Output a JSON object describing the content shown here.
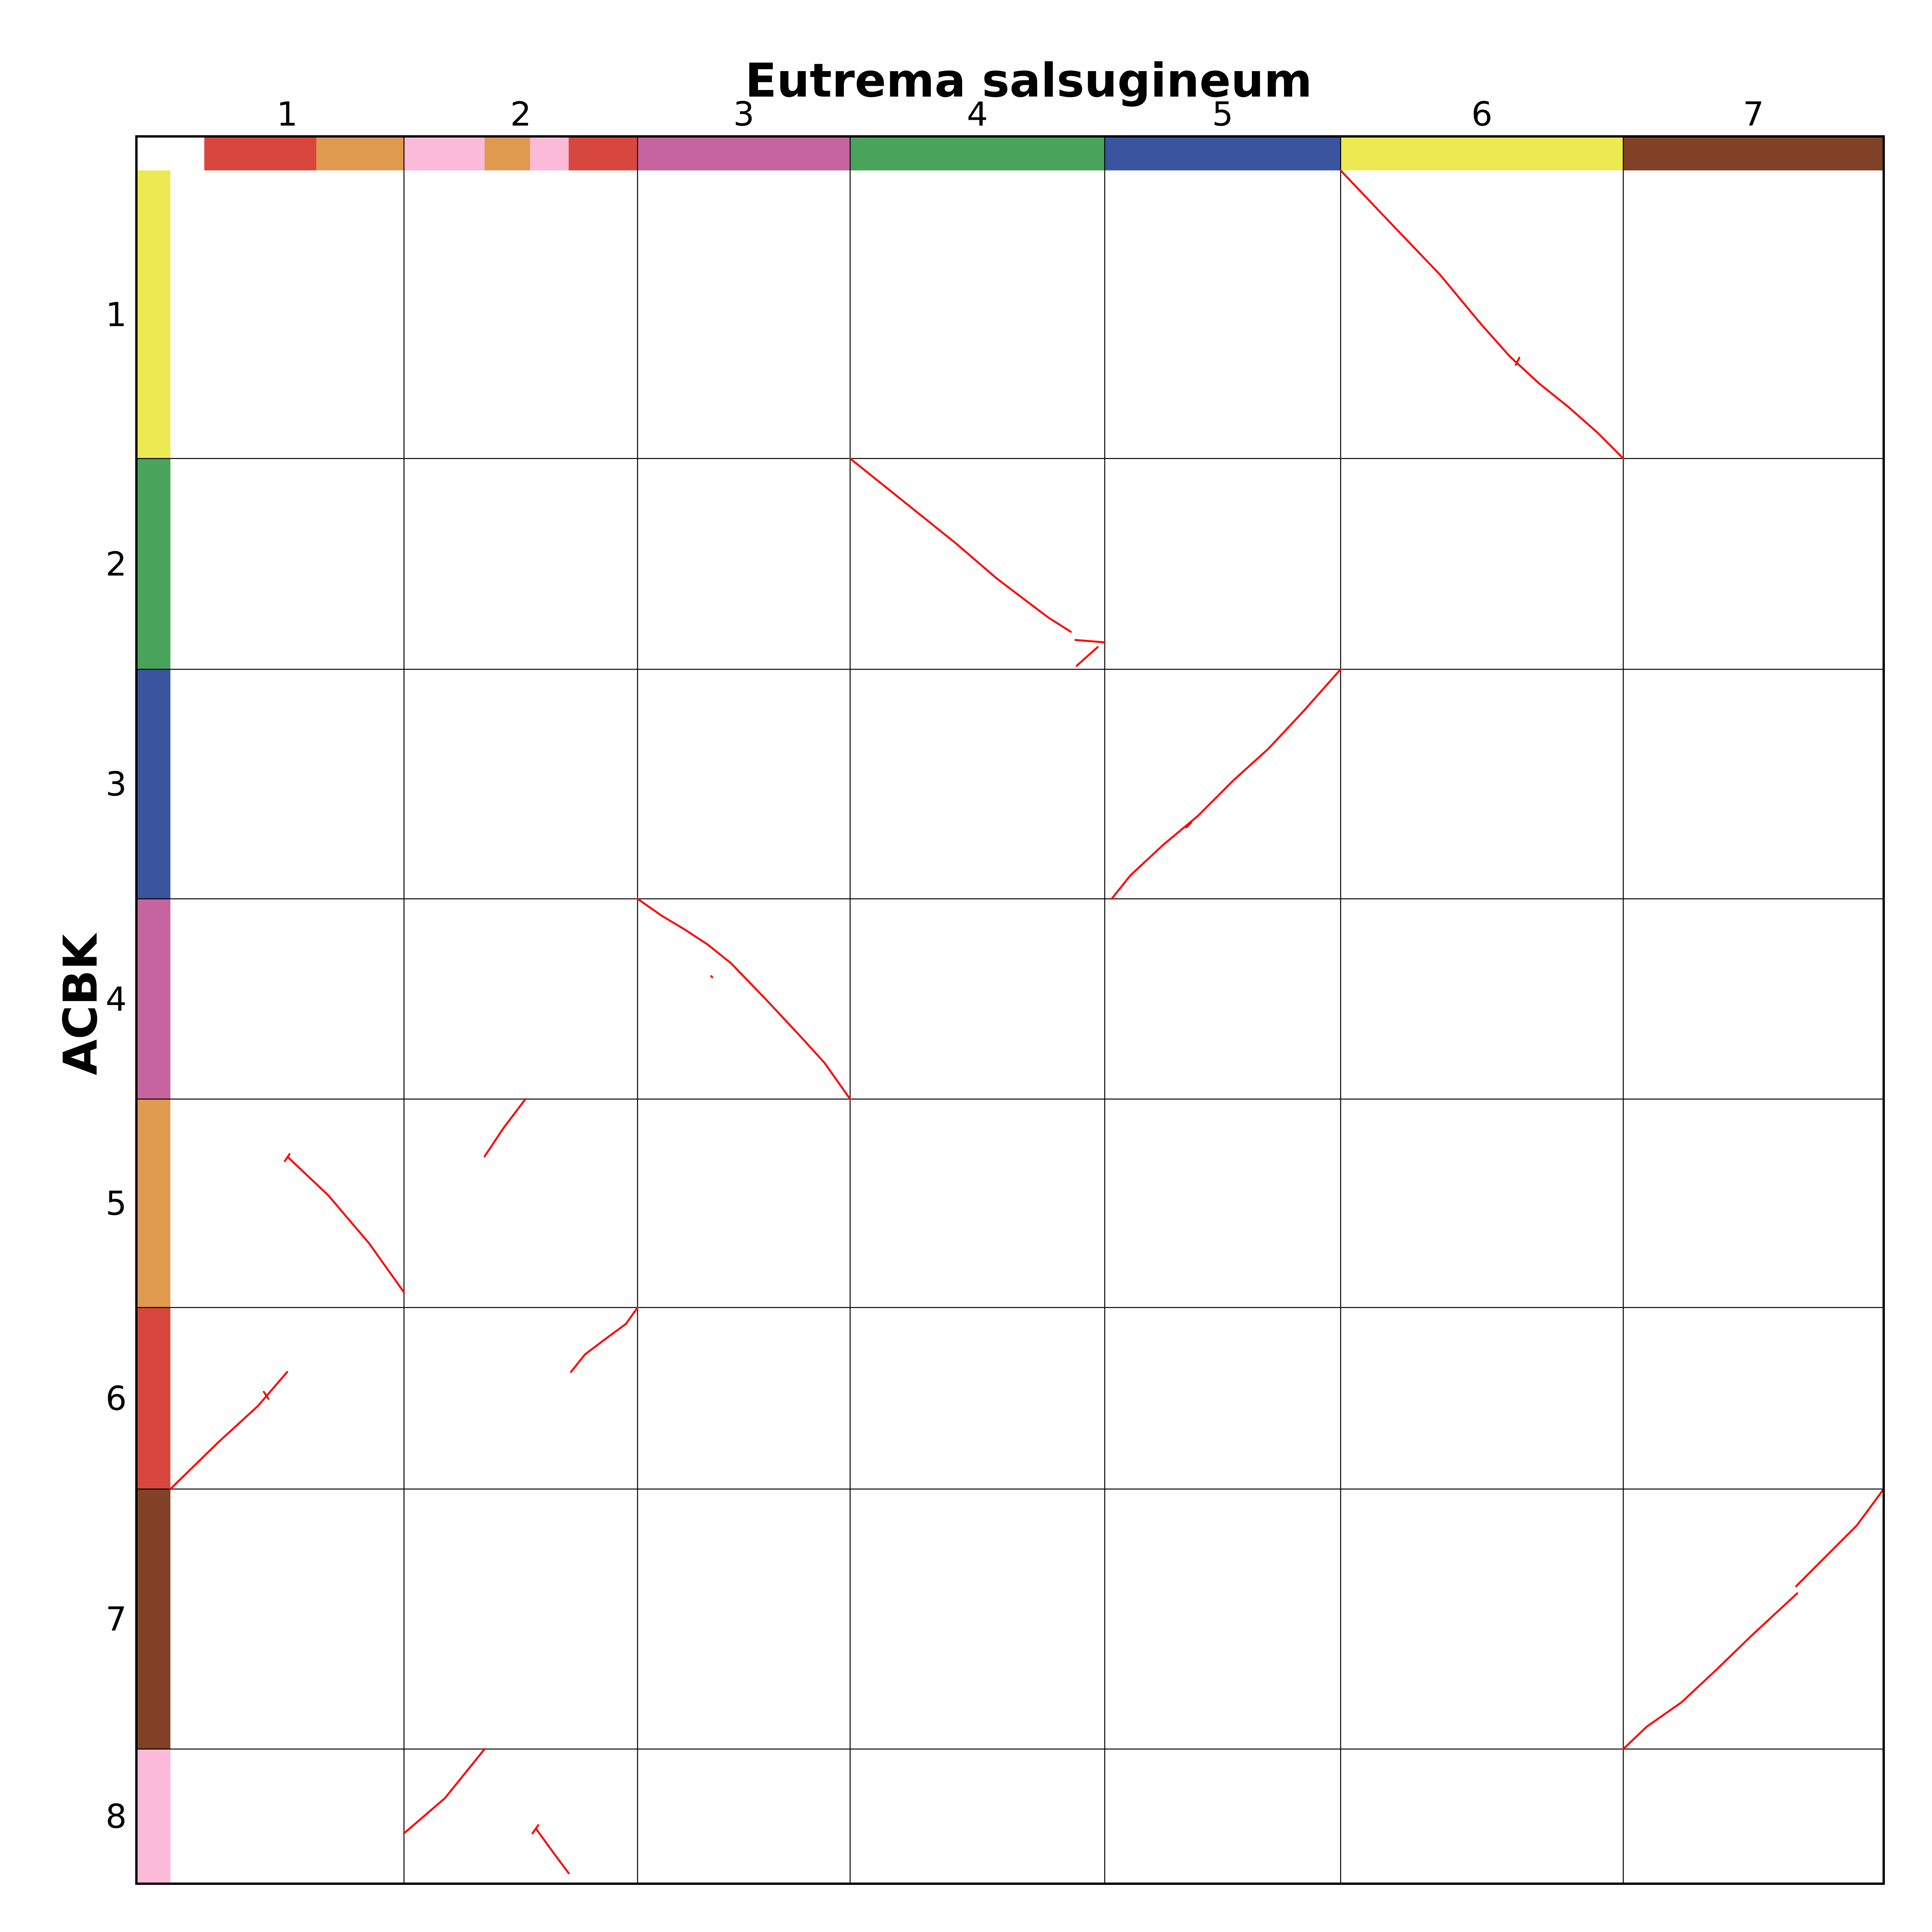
{
  "chart_data": {
    "type": "scatter",
    "title": "Eutrema salsugineum",
    "xlabel": "Eutrema salsugineum",
    "ylabel": "ACBK",
    "x_axis": {
      "chromosomes": [
        {
          "label": "1",
          "size": 20.0
        },
        {
          "label": "2",
          "size": 20.0
        },
        {
          "label": "3",
          "size": 18.2
        },
        {
          "label": "4",
          "size": 21.8
        },
        {
          "label": "5",
          "size": 20.2
        },
        {
          "label": "6",
          "size": 24.2
        },
        {
          "label": "7",
          "size": 22.3
        }
      ],
      "colorbar": [
        {
          "chr": "1",
          "start": 0.0,
          "end": 2.9,
          "color": "#ffffff"
        },
        {
          "chr": "1",
          "start": 2.9,
          "end": 12.5,
          "color": "#d8473e"
        },
        {
          "chr": "1",
          "start": 12.5,
          "end": 20.0,
          "color": "#e09a50"
        },
        {
          "chr": "2",
          "start": 0.0,
          "end": 6.9,
          "color": "#fbbad8"
        },
        {
          "chr": "2",
          "start": 6.9,
          "end": 10.8,
          "color": "#e09a50"
        },
        {
          "chr": "2",
          "start": 10.8,
          "end": 14.1,
          "color": "#fbbad8"
        },
        {
          "chr": "2",
          "start": 14.1,
          "end": 20.0,
          "color": "#d8473e"
        },
        {
          "chr": "3",
          "start": 0.0,
          "end": 18.2,
          "color": "#c5649f"
        },
        {
          "chr": "4",
          "start": 0.0,
          "end": 21.8,
          "color": "#4aa35a"
        },
        {
          "chr": "5",
          "start": 0.0,
          "end": 20.2,
          "color": "#3b549f"
        },
        {
          "chr": "6",
          "start": 0.0,
          "end": 24.2,
          "color": "#ede952"
        },
        {
          "chr": "7",
          "start": 0.0,
          "end": 22.3,
          "color": "#804127"
        }
      ]
    },
    "y_axis": {
      "chromosomes": [
        {
          "label": "1",
          "size": 24.6,
          "color": "#ede952"
        },
        {
          "label": "2",
          "size": 18.0,
          "color": "#4aa35a"
        },
        {
          "label": "3",
          "size": 19.6,
          "color": "#3b549f"
        },
        {
          "label": "4",
          "size": 17.1,
          "color": "#c5649f"
        },
        {
          "label": "5",
          "size": 17.8,
          "color": "#e09a50"
        },
        {
          "label": "6",
          "size": 15.5,
          "color": "#d8473e"
        },
        {
          "label": "7",
          "size": 22.2,
          "color": "#804127"
        },
        {
          "label": "8",
          "size": 11.5,
          "color": "#fbbad8"
        }
      ]
    },
    "grid": true,
    "line_color": "#ff0000",
    "segments": [
      {
        "x_chr": "6",
        "y_chr": "1",
        "points": [
          [
            0,
            0
          ],
          [
            4,
            4.2
          ],
          [
            8.5,
            8.9
          ],
          [
            12,
            13.1
          ],
          [
            14.5,
            15.9
          ],
          [
            17,
            18.2
          ],
          [
            19.5,
            20.2
          ],
          [
            22,
            22.4
          ],
          [
            24.2,
            24.6
          ]
        ]
      },
      {
        "x_chr": "6",
        "y_chr": "1",
        "points": [
          [
            15.3,
            16.0
          ],
          [
            15.0,
            16.6
          ]
        ]
      },
      {
        "x_chr": "4",
        "y_chr": "2",
        "points": [
          [
            0,
            0
          ],
          [
            4,
            3.2
          ],
          [
            9,
            7.2
          ],
          [
            12.5,
            10.2
          ],
          [
            15,
            12.1
          ],
          [
            17,
            13.6
          ],
          [
            18.9,
            14.8
          ]
        ]
      },
      {
        "x_chr": "4",
        "y_chr": "2",
        "points": [
          [
            19.3,
            15.5
          ],
          [
            21.8,
            15.7
          ]
        ]
      },
      {
        "x_chr": "4",
        "y_chr": "2",
        "points": [
          [
            21.2,
            16.1
          ],
          [
            19.4,
            17.7
          ]
        ]
      },
      {
        "x_chr": "5",
        "y_chr": "3",
        "points": [
          [
            0.6,
            19.6
          ],
          [
            2.2,
            17.6
          ],
          [
            5,
            15.0
          ],
          [
            8,
            12.5
          ],
          [
            11,
            9.5
          ],
          [
            14,
            6.8
          ],
          [
            17,
            3.6
          ],
          [
            20.2,
            0
          ]
        ]
      },
      {
        "x_chr": "5",
        "y_chr": "3",
        "points": [
          [
            7.0,
            13.5
          ],
          [
            7.4,
            13.1
          ]
        ]
      },
      {
        "x_chr": "3",
        "y_chr": "4",
        "points": [
          [
            0,
            0
          ],
          [
            2,
            1.4
          ],
          [
            4,
            2.6
          ],
          [
            6,
            3.9
          ],
          [
            8,
            5.5
          ],
          [
            11,
            8.6
          ],
          [
            14,
            11.8
          ],
          [
            16,
            14.0
          ],
          [
            18.2,
            17.1
          ]
        ]
      },
      {
        "x_chr": "3",
        "y_chr": "4",
        "points": [
          [
            6.3,
            6.6
          ],
          [
            6.4,
            6.7
          ]
        ]
      },
      {
        "x_chr": "1",
        "y_chr": "5",
        "points": [
          [
            10.1,
            5.0
          ],
          [
            13.5,
            8.2
          ],
          [
            17,
            12.3
          ],
          [
            20.0,
            16.5
          ]
        ]
      },
      {
        "x_chr": "1",
        "y_chr": "5",
        "points": [
          [
            9.8,
            5.3
          ],
          [
            10.2,
            4.7
          ]
        ]
      },
      {
        "x_chr": "2",
        "y_chr": "5",
        "points": [
          [
            6.9,
            4.9
          ],
          [
            8.5,
            2.5
          ],
          [
            10.4,
            0
          ]
        ]
      },
      {
        "x_chr": "1",
        "y_chr": "6",
        "points": [
          [
            0,
            15.5
          ],
          [
            4,
            11.6
          ],
          [
            7.5,
            8.4
          ],
          [
            10.0,
            5.5
          ]
        ]
      },
      {
        "x_chr": "1",
        "y_chr": "6",
        "points": [
          [
            8.0,
            7.2
          ],
          [
            8.4,
            7.8
          ]
        ]
      },
      {
        "x_chr": "2",
        "y_chr": "6",
        "points": [
          [
            14.3,
            5.5
          ],
          [
            15.5,
            4.0
          ],
          [
            17.5,
            2.5
          ],
          [
            19.0,
            1.4
          ],
          [
            20.0,
            0
          ]
        ]
      },
      {
        "x_chr": "7",
        "y_chr": "7",
        "points": [
          [
            0,
            22.2
          ],
          [
            2,
            20.3
          ],
          [
            5,
            18.2
          ],
          [
            8,
            15.4
          ],
          [
            11,
            12.5
          ],
          [
            14.9,
            8.9
          ]
        ]
      },
      {
        "x_chr": "7",
        "y_chr": "7",
        "points": [
          [
            14.8,
            8.3
          ],
          [
            17,
            6.1
          ],
          [
            20,
            3.1
          ],
          [
            22.3,
            0
          ]
        ]
      },
      {
        "x_chr": "2",
        "y_chr": "8",
        "points": [
          [
            0,
            7.2
          ],
          [
            3.5,
            4.2
          ],
          [
            6.9,
            0
          ]
        ]
      },
      {
        "x_chr": "2",
        "y_chr": "8",
        "points": [
          [
            11.0,
            7.2
          ],
          [
            11.5,
            6.5
          ]
        ]
      },
      {
        "x_chr": "2",
        "y_chr": "8",
        "points": [
          [
            11.3,
            6.8
          ],
          [
            12.9,
            9.0
          ],
          [
            14.1,
            10.6
          ]
        ]
      }
    ]
  }
}
